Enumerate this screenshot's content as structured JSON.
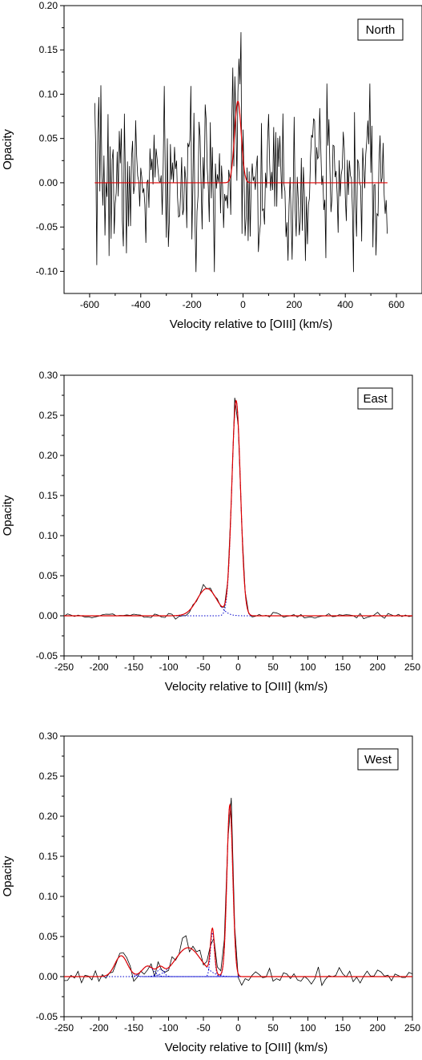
{
  "colors": {
    "data": "#000000",
    "fit": "#e00000",
    "components": "#0000cc",
    "axes": "#000000"
  },
  "chart_data": [
    {
      "type": "line",
      "panel": "North",
      "label": "North",
      "xlabel": "Velocity relative to [OIII] (km/s)",
      "ylabel": "Opacity",
      "xlim": [
        -700,
        700
      ],
      "ylim": [
        -0.125,
        0.2
      ],
      "xticks": [
        -600,
        -400,
        -200,
        0,
        200,
        400,
        600
      ],
      "xtick_labels": [
        "-600",
        "-400",
        "-200",
        "0",
        "200",
        "400",
        "600"
      ],
      "yticks": [
        -0.1,
        -0.05,
        0.0,
        0.05,
        0.1,
        0.15,
        0.2
      ],
      "ytick_labels": [
        "-0.10",
        "-0.05",
        "0.00",
        "0.05",
        "0.10",
        "0.15",
        "0.20"
      ],
      "noise": {
        "x_start": -580,
        "x_end": 565,
        "step": 4,
        "sigma": 0.042,
        "seed": 7
      },
      "fit_components": [
        {
          "center": -20,
          "amp": 0.092,
          "sigma": 13
        }
      ],
      "fit_range": [
        -580,
        565
      ],
      "show_components": false,
      "features": [
        {
          "x": -580,
          "y": 0.09
        },
        {
          "x": -572,
          "y": -0.093
        },
        {
          "x": -555,
          "y": 0.11
        },
        {
          "x": -40,
          "y": 0.13
        },
        {
          "x": -30,
          "y": 0.12
        },
        {
          "x": -16,
          "y": 0.14
        },
        {
          "x": -8,
          "y": 0.17
        },
        {
          "x": 0,
          "y": 0.06
        },
        {
          "x": 10,
          "y": -0.06
        },
        {
          "x": 178,
          "y": -0.088
        },
        {
          "x": 325,
          "y": -0.085
        },
        {
          "x": 330,
          "y": 0.112
        },
        {
          "x": 495,
          "y": 0.112
        },
        {
          "x": 520,
          "y": -0.082
        },
        {
          "x": 555,
          "y": -0.035
        }
      ]
    },
    {
      "type": "line",
      "panel": "East",
      "label": "East",
      "xlabel": "Velocity relative to [OIII] (km/s)",
      "ylabel": "Opacity",
      "xlim": [
        -250,
        250
      ],
      "ylim": [
        -0.05,
        0.3
      ],
      "xticks": [
        -250,
        -200,
        -150,
        -100,
        -50,
        0,
        50,
        100,
        150,
        200,
        250
      ],
      "xtick_labels": [
        "-250",
        "-200",
        "-150",
        "-100",
        "-50",
        "0",
        "50",
        "100",
        "150",
        "200",
        "250"
      ],
      "yticks": [
        -0.05,
        0.0,
        0.05,
        0.1,
        0.15,
        0.2,
        0.25,
        0.3
      ],
      "ytick_labels": [
        "-0.05",
        "0.00",
        "0.05",
        "0.10",
        "0.15",
        "0.20",
        "0.25",
        "0.30"
      ],
      "noise": {
        "x_start": -250,
        "x_end": 250,
        "step": 5,
        "sigma": 0.0018,
        "seed": 11
      },
      "fit_components": [
        {
          "center": -45,
          "amp": 0.034,
          "sigma": 14
        },
        {
          "center": -3,
          "amp": 0.268,
          "sigma": 6.2
        }
      ],
      "fit_range": [
        -250,
        250
      ],
      "show_components": true,
      "features": [
        {
          "x": -50,
          "y": 0.039
        },
        {
          "x": -30,
          "y": 0.021
        },
        {
          "x": -3,
          "y": 0.272
        }
      ]
    },
    {
      "type": "line",
      "panel": "West",
      "label": "West",
      "xlabel": "Velocity relative to [OIII] (km/s)",
      "ylabel": "Opacity",
      "xlim": [
        -250,
        250
      ],
      "ylim": [
        -0.05,
        0.3
      ],
      "xticks": [
        -250,
        -200,
        -150,
        -100,
        -50,
        0,
        50,
        100,
        150,
        200,
        250
      ],
      "xtick_labels": [
        "-250",
        "-200",
        "-150",
        "-100",
        "-50",
        "0",
        "50",
        "100",
        "150",
        "200",
        "250"
      ],
      "yticks": [
        -0.05,
        0.0,
        0.05,
        0.1,
        0.15,
        0.2,
        0.25,
        0.3
      ],
      "ytick_labels": [
        "-0.05",
        "0.00",
        "0.05",
        "0.10",
        "0.15",
        "0.20",
        "0.25",
        "0.30"
      ],
      "noise": {
        "x_start": -250,
        "x_end": 250,
        "step": 5,
        "sigma": 0.0045,
        "seed": 23
      },
      "fit_components": [
        {
          "center": -168,
          "amp": 0.026,
          "sigma": 9
        },
        {
          "center": -130,
          "amp": 0.013,
          "sigma": 8
        },
        {
          "center": -112,
          "amp": 0.009,
          "sigma": 5
        },
        {
          "center": -72,
          "amp": 0.036,
          "sigma": 18
        },
        {
          "center": -37,
          "amp": 0.055,
          "sigma": 2.8
        },
        {
          "center": -12,
          "amp": 0.214,
          "sigma": 4.2
        }
      ],
      "fit_range": [
        -250,
        250
      ],
      "show_components": true,
      "features": [
        {
          "x": -168,
          "y": 0.029
        },
        {
          "x": -80,
          "y": 0.048
        },
        {
          "x": -74,
          "y": 0.051
        },
        {
          "x": -60,
          "y": 0.031
        },
        {
          "x": -45,
          "y": 0.019
        },
        {
          "x": -37,
          "y": 0.048
        },
        {
          "x": -28,
          "y": 0.012
        },
        {
          "x": -12,
          "y": 0.223
        },
        {
          "x": 115,
          "y": 0.012
        },
        {
          "x": 120,
          "y": -0.011
        }
      ]
    }
  ]
}
